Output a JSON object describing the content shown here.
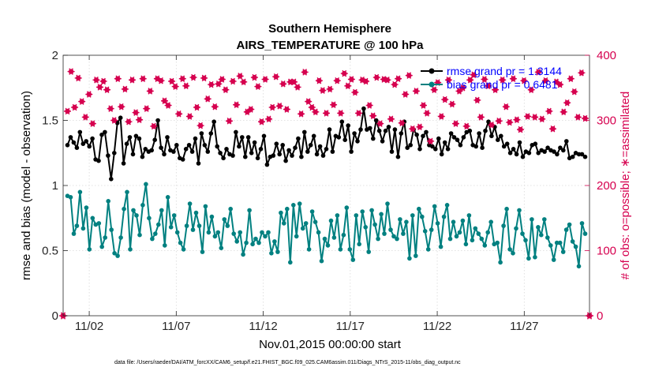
{
  "chart_data": {
    "type": "line",
    "title": "Southern Hemisphere",
    "subtitle": "AIRS_TEMPERATURE @ 100 hPa",
    "xlabel": "Nov.01,2015 00:00:00 start",
    "ylabel": "rmse and bias (model - observation)",
    "y2label": "# of obs: o=possible; ∗=assimilated",
    "footnote": "data file: /Users/raeder/DAI/ATM_forcXX/CAM6_setup/f.e21.FHIST_BGC.f09_025.CAM6assim.011/Diags_NTrS_2015-11/obs_diag_output.nc",
    "xlim": [
      0.5,
      30.75
    ],
    "ylim": [
      0,
      2
    ],
    "y2lim": [
      0,
      400
    ],
    "xticks": [
      2,
      7,
      12,
      17,
      22,
      27
    ],
    "xtick_labels": [
      "11/02",
      "11/07",
      "11/12",
      "11/17",
      "11/22",
      "11/27"
    ],
    "yticks": [
      0,
      0.5,
      1,
      1.5,
      2
    ],
    "ytick_labels": [
      "0",
      "0.5",
      "1",
      "1.5",
      "2"
    ],
    "y2ticks": [
      0,
      100,
      200,
      300,
      400
    ],
    "y2tick_labels": [
      "0",
      "100",
      "200",
      "300",
      "400"
    ],
    "grid": true,
    "legend_position": "top-right",
    "colors": {
      "rmse": "#000000",
      "bias": "#008080",
      "obs": "#d6004f",
      "legend_text": "#0000ff"
    },
    "series": [
      {
        "name": "rmse grand pr = 1.3144",
        "axis": "left",
        "color": "#000000",
        "values": [
          1.31,
          1.37,
          1.33,
          1.29,
          1.41,
          1.32,
          1.34,
          1.3,
          1.36,
          1.2,
          1.19,
          1.39,
          1.41,
          1.23,
          1.05,
          1.25,
          1.48,
          1.52,
          1.17,
          1.32,
          1.37,
          1.24,
          1.38,
          1.36,
          1.22,
          1.28,
          1.26,
          1.27,
          1.35,
          1.5,
          1.29,
          1.24,
          1.37,
          1.27,
          1.26,
          1.31,
          1.21,
          1.2,
          1.28,
          1.31,
          1.26,
          1.36,
          1.17,
          1.4,
          1.31,
          1.26,
          1.4,
          1.49,
          1.3,
          1.25,
          1.21,
          1.28,
          1.24,
          1.23,
          1.41,
          1.3,
          1.37,
          1.22,
          1.37,
          1.25,
          1.33,
          1.21,
          1.28,
          1.38,
          1.16,
          1.22,
          1.23,
          1.32,
          1.24,
          1.31,
          1.19,
          1.27,
          1.23,
          1.29,
          1.36,
          1.22,
          1.41,
          1.26,
          1.31,
          1.38,
          1.24,
          1.3,
          1.23,
          1.28,
          1.43,
          1.26,
          1.38,
          1.37,
          1.49,
          1.35,
          1.46,
          1.26,
          1.4,
          1.34,
          1.43,
          1.59,
          1.43,
          1.44,
          1.36,
          1.5,
          1.42,
          1.34,
          1.42,
          1.45,
          1.26,
          1.43,
          1.22,
          1.4,
          1.49,
          1.29,
          1.31,
          1.43,
          1.39,
          1.28,
          1.38,
          1.41,
          1.31,
          1.3,
          1.28,
          1.36,
          1.24,
          1.33,
          1.28,
          1.4,
          1.37,
          1.35,
          1.31,
          1.37,
          1.41,
          1.42,
          1.31,
          1.3,
          1.4,
          1.29,
          1.42,
          1.49,
          1.38,
          1.45,
          1.35,
          1.38,
          1.3,
          1.32,
          1.25,
          1.28,
          1.24,
          1.33,
          1.22,
          1.26,
          1.25,
          1.31,
          1.32,
          1.25,
          1.27,
          1.26,
          1.29,
          1.27,
          1.26,
          1.24,
          1.29,
          1.27,
          1.34,
          1.21,
          1.22,
          1.25,
          1.24,
          1.24,
          1.22
        ]
      },
      {
        "name": "bias grand pr = 0.6481",
        "axis": "left",
        "color": "#008080",
        "values": [
          0.92,
          0.91,
          0.63,
          0.69,
          0.95,
          0.67,
          0.83,
          0.51,
          0.75,
          0.7,
          0.71,
          0.53,
          0.6,
          0.88,
          0.66,
          0.48,
          0.46,
          0.6,
          0.82,
          0.95,
          0.51,
          0.81,
          0.77,
          0.62,
          0.85,
          1.01,
          0.75,
          0.59,
          0.63,
          0.7,
          0.81,
          0.54,
          0.91,
          0.68,
          0.77,
          0.64,
          0.56,
          0.51,
          0.69,
          0.86,
          0.66,
          0.79,
          0.69,
          0.49,
          0.84,
          0.64,
          0.76,
          0.61,
          0.64,
          0.52,
          0.74,
          0.69,
          0.82,
          0.63,
          0.57,
          0.64,
          0.47,
          0.56,
          0.81,
          0.55,
          0.59,
          0.56,
          0.64,
          0.61,
          0.64,
          0.48,
          0.57,
          0.49,
          0.79,
          0.71,
          0.82,
          0.41,
          0.85,
          0.61,
          0.86,
          0.67,
          0.71,
          0.51,
          0.8,
          0.72,
          0.64,
          0.42,
          0.59,
          0.54,
          0.73,
          0.6,
          0.77,
          0.51,
          0.62,
          0.83,
          0.51,
          0.43,
          0.77,
          0.55,
          0.8,
          0.68,
          0.49,
          0.81,
          0.7,
          0.59,
          0.78,
          0.63,
          0.86,
          0.66,
          0.61,
          0.59,
          0.74,
          0.63,
          0.72,
          0.44,
          0.77,
          0.46,
          0.82,
          0.76,
          0.65,
          0.51,
          0.66,
          0.84,
          0.71,
          0.53,
          0.76,
          0.85,
          0.59,
          0.72,
          0.61,
          0.64,
          0.73,
          0.55,
          0.77,
          0.58,
          0.67,
          0.63,
          0.59,
          0.54,
          0.64,
          0.72,
          0.55,
          0.56,
          0.41,
          0.69,
          0.82,
          0.51,
          0.48,
          0.67,
          0.81,
          0.63,
          0.58,
          0.44,
          0.74,
          0.45,
          0.68,
          0.62,
          0.74,
          0.6,
          0.54,
          0.43,
          0.56,
          0.56,
          0.49,
          0.66,
          0.7,
          0.57,
          0.53,
          0.38,
          0.71,
          0.63
        ]
      },
      {
        "name": "obs assimilated",
        "axis": "right",
        "color": "#d6004f",
        "values": [
          314,
          375,
          320,
          365,
          329,
          305,
          340,
          295,
          362,
          351,
          360,
          347,
          318,
          300,
          364,
          321,
          348,
          298,
          362,
          312,
          301,
          364,
          318,
          345,
          291,
          364,
          361,
          330,
          323,
          360,
          352,
          310,
          364,
          353,
          306,
          366,
          320,
          292,
          365,
          333,
          355,
          321,
          356,
          363,
          347,
          299,
          360,
          324,
          368,
          359,
          313,
          317,
          366,
          352,
          298,
          363,
          302,
          320,
          367,
          322,
          356,
          317,
          359,
          359,
          351,
          310,
          374,
          329,
          320,
          313,
          361,
          346,
          311,
          348,
          324,
          361,
          311,
          372,
          353,
          363,
          343,
          311,
          362,
          360,
          323,
          307,
          366,
          295,
          363,
          362,
          302,
          355,
          364,
          296,
          340,
          369,
          287,
          345,
          290,
          323,
          311,
          268,
          347,
          358,
          306,
          332,
          362,
          325,
          295,
          345,
          350,
          291,
          362,
          370,
          331,
          305,
          363,
          353,
          293,
          347,
          299,
          362,
          321,
          297,
          364,
          301,
          286,
          361,
          306,
          347,
          305,
          374,
          302,
          361,
          314,
          287,
          359,
          355,
          313,
          327,
          364,
          344,
          305,
          373,
          303
        ]
      },
      {
        "name": "obs possible",
        "axis": "right",
        "color": "#d6004f",
        "values": [
          0,
          0,
          0,
          0,
          0,
          0,
          0,
          0,
          0,
          0,
          0,
          0,
          0,
          0,
          0,
          0,
          0,
          0,
          0,
          0,
          0,
          0,
          0,
          0,
          0,
          0,
          0,
          0,
          0,
          0,
          0
        ]
      }
    ]
  }
}
